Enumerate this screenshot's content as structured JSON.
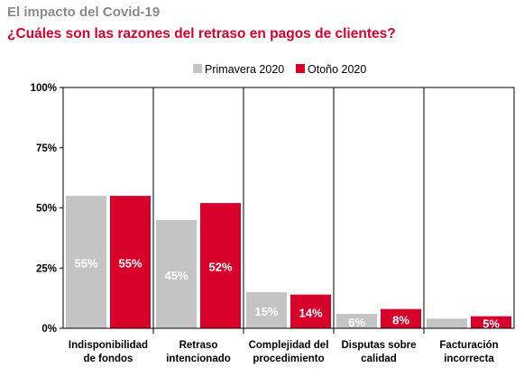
{
  "header": {
    "title": "El impacto del Covid-19",
    "subtitle": "¿Cuáles son las razones del retraso en pagos de clientes?"
  },
  "colors": {
    "primavera": "#c4c4c4",
    "otono": "#d6002a",
    "title": "#8a8a8a",
    "subtitle": "#d6002a"
  },
  "chart_data": {
    "type": "bar",
    "title": "El impacto del Covid-19",
    "subtitle": "¿Cuáles son las razones del retraso en pagos de clientes?",
    "categories": [
      [
        "Indisponibilidad",
        "de fondos"
      ],
      [
        "Retraso",
        "intencionado"
      ],
      [
        "Complejidad del",
        "procedimiento"
      ],
      [
        "Disputas sobre",
        "calidad"
      ],
      [
        "Facturación",
        "incorrecta"
      ]
    ],
    "series": [
      {
        "name": "Primavera 2020",
        "values": [
          55,
          45,
          15,
          6,
          4
        ],
        "labels": [
          "55%",
          "45%",
          "15%",
          "6%",
          ""
        ]
      },
      {
        "name": "Otoño 2020",
        "values": [
          55,
          52,
          14,
          8,
          5
        ],
        "labels": [
          "55%",
          "52%",
          "14%",
          "8%",
          "5%"
        ]
      }
    ],
    "yticks": [
      "0%",
      "25%",
      "50%",
      "75%",
      "100%"
    ],
    "ylim": [
      0,
      100
    ],
    "grid": false,
    "legend": "top-center"
  }
}
